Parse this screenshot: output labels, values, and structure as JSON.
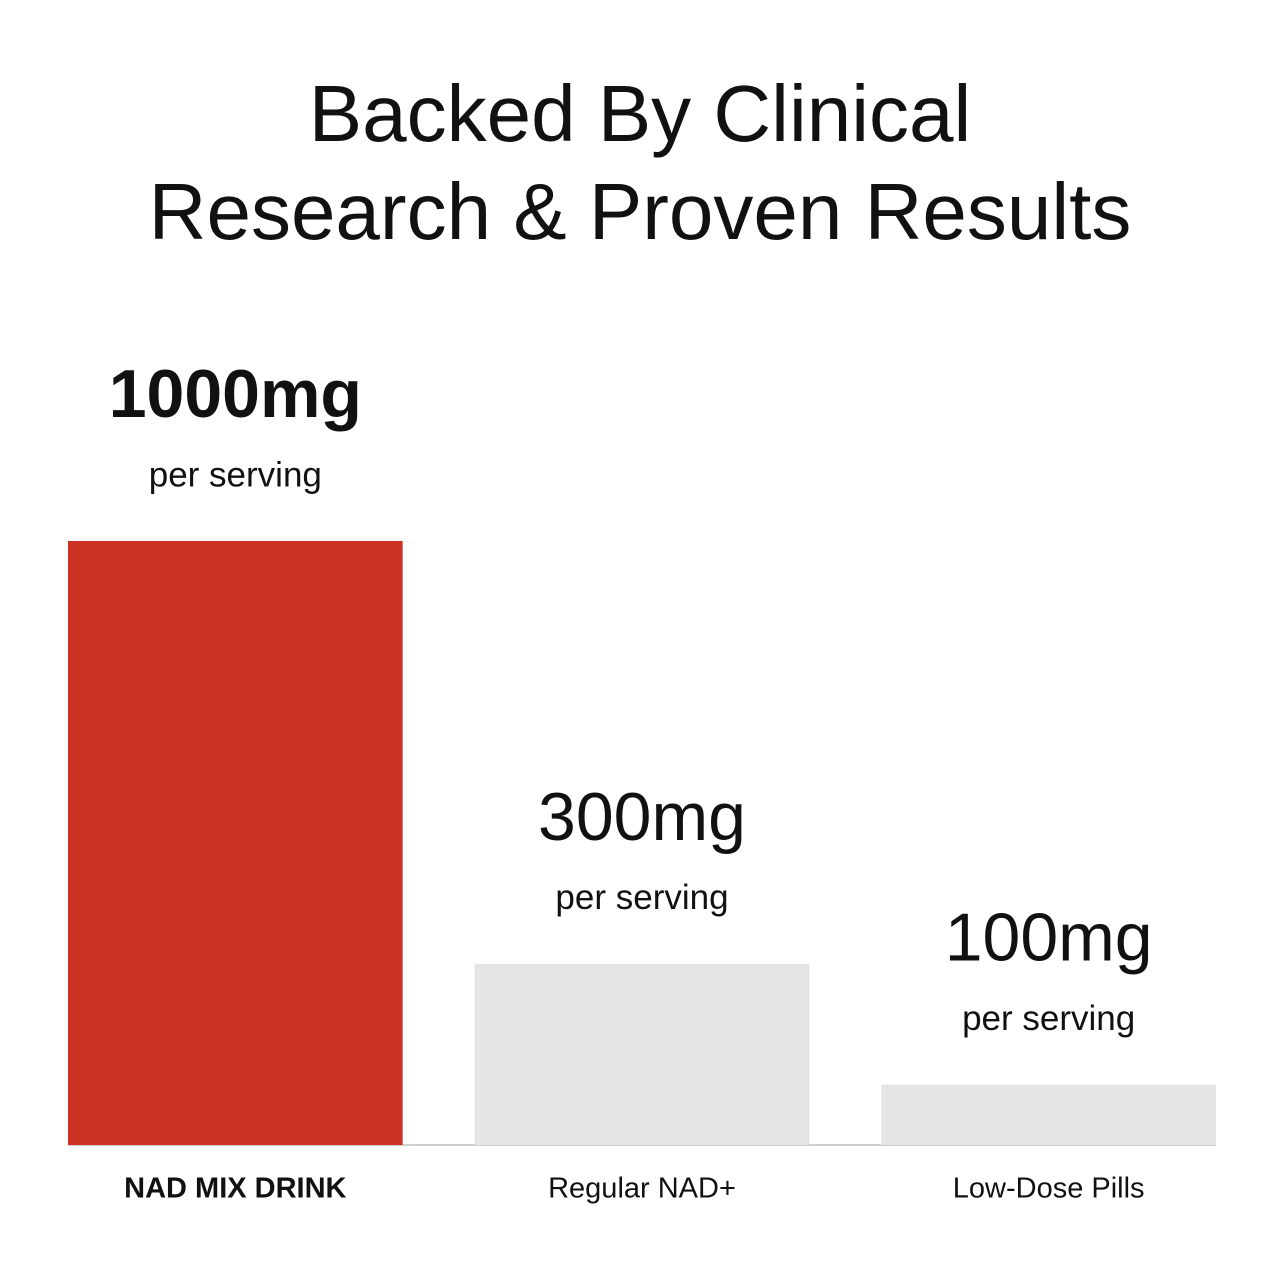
{
  "chart_data": {
    "type": "bar",
    "title": [
      "Backed By Clinical",
      "Research & Proven Results"
    ],
    "categories": [
      "NAD MIX DRINK",
      "Regular NAD+",
      "Low-Dose Pills"
    ],
    "values": [
      1000,
      300,
      100
    ],
    "value_labels": [
      "1000mg",
      "300mg",
      "100mg"
    ],
    "value_sublabel": "per serving",
    "colors": [
      "#cc3124",
      "#e5e5e5",
      "#e5e5e5"
    ],
    "ylim": [
      0,
      1000
    ],
    "grid": false
  }
}
